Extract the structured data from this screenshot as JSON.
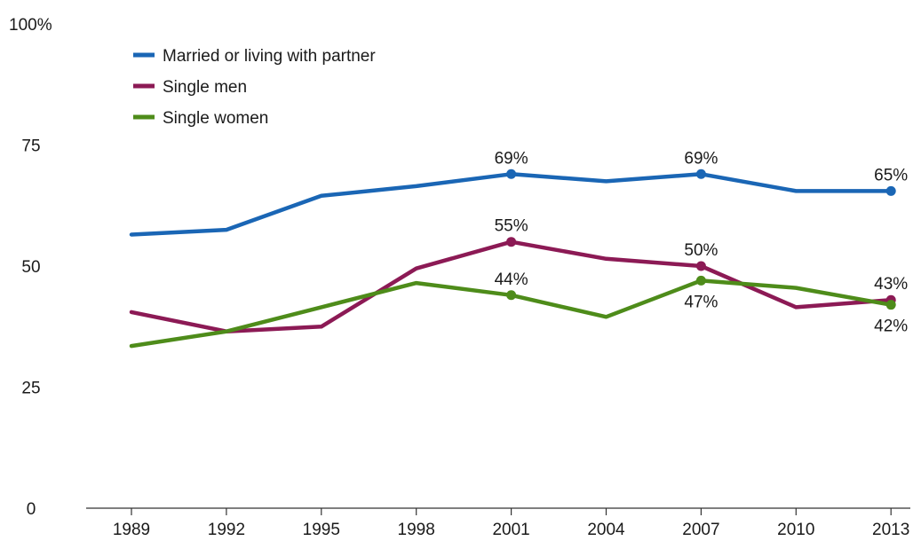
{
  "chart_data": {
    "type": "line",
    "title": "",
    "xlabel": "",
    "ylabel": "",
    "x": [
      "1989",
      "1992",
      "1995",
      "1998",
      "2001",
      "2004",
      "2007",
      "2010",
      "2013"
    ],
    "ylim": [
      0,
      100
    ],
    "yticks": [
      0,
      25,
      50,
      75,
      100
    ],
    "ytick_labels": [
      "0",
      "25",
      "50",
      "75",
      "100%"
    ],
    "grid": false,
    "legend_position": "top-left",
    "series": [
      {
        "name": "Married or living with partner",
        "color": "#1a66b5",
        "values": [
          56.5,
          57.5,
          64.5,
          66.5,
          69,
          67.5,
          69,
          65.5,
          65.5
        ],
        "labels": [
          {
            "index": 4,
            "text": "69%",
            "pos": "above"
          },
          {
            "index": 6,
            "text": "69%",
            "pos": "above"
          },
          {
            "index": 8,
            "text": "65%",
            "pos": "above"
          }
        ]
      },
      {
        "name": "Single men",
        "color": "#8c1a55",
        "values": [
          40.5,
          36.5,
          37.5,
          49.5,
          55,
          51.5,
          50,
          41.5,
          43
        ],
        "labels": [
          {
            "index": 4,
            "text": "55%",
            "pos": "above"
          },
          {
            "index": 6,
            "text": "50%",
            "pos": "above"
          },
          {
            "index": 8,
            "text": "43%",
            "pos": "above"
          }
        ]
      },
      {
        "name": "Single women",
        "color": "#4e8c1a",
        "values": [
          33.5,
          36.5,
          41.5,
          46.5,
          44,
          39.5,
          47,
          45.5,
          42
        ],
        "labels": [
          {
            "index": 4,
            "text": "44%",
            "pos": "above"
          },
          {
            "index": 6,
            "text": "47%",
            "pos": "below"
          },
          {
            "index": 8,
            "text": "42%",
            "pos": "below"
          }
        ]
      }
    ]
  }
}
